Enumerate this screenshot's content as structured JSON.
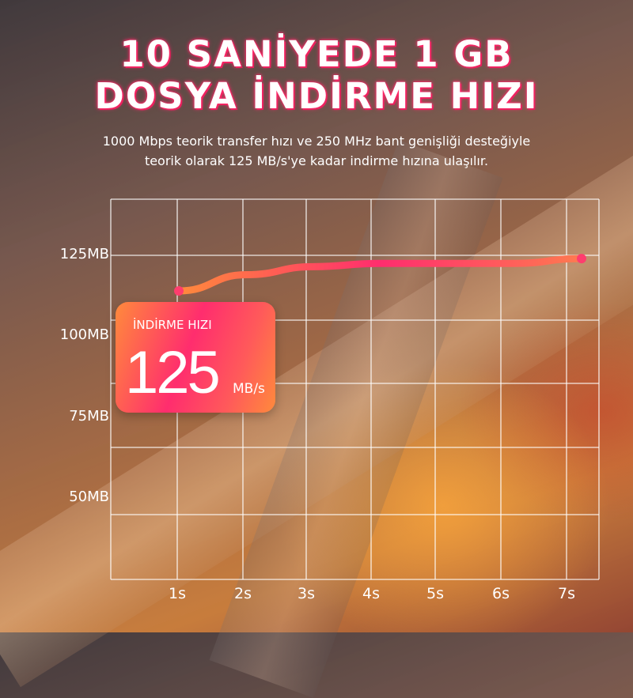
{
  "header": {
    "title_line1": "10 SANİYEDE 1 GB",
    "title_line2": "DOSYA İNDİRME HIZI",
    "subtitle_line1": "1000 Mbps teorik transfer hızı ve 250 MHz bant genişliği desteğiyle",
    "subtitle_line2": "teorik olarak 125 MB/s'ye kadar indirme hızına ulaşılır."
  },
  "card": {
    "label": "İNDİRME HIZI",
    "value": "125",
    "unit": "MB/s"
  },
  "colors": {
    "line_start": "#ff8a3c",
    "line_mid": "#ff2d6e",
    "grid": "#ffffff",
    "accent": "#ff2d6e"
  },
  "chart_data": {
    "type": "line",
    "title": "",
    "xlabel": "",
    "ylabel": "",
    "x": [
      "1s",
      "2s",
      "3s",
      "4s",
      "5s",
      "6s",
      "7s"
    ],
    "yticks": [
      "125MB",
      "100MB",
      "75MB",
      "50MB"
    ],
    "ytick_values": [
      125,
      100,
      75,
      50
    ],
    "ylim": [
      30,
      135
    ],
    "grid": true,
    "series": [
      {
        "values": [
          114,
          119,
          121.5,
          122.5,
          122.5,
          122.5,
          124
        ]
      }
    ]
  }
}
